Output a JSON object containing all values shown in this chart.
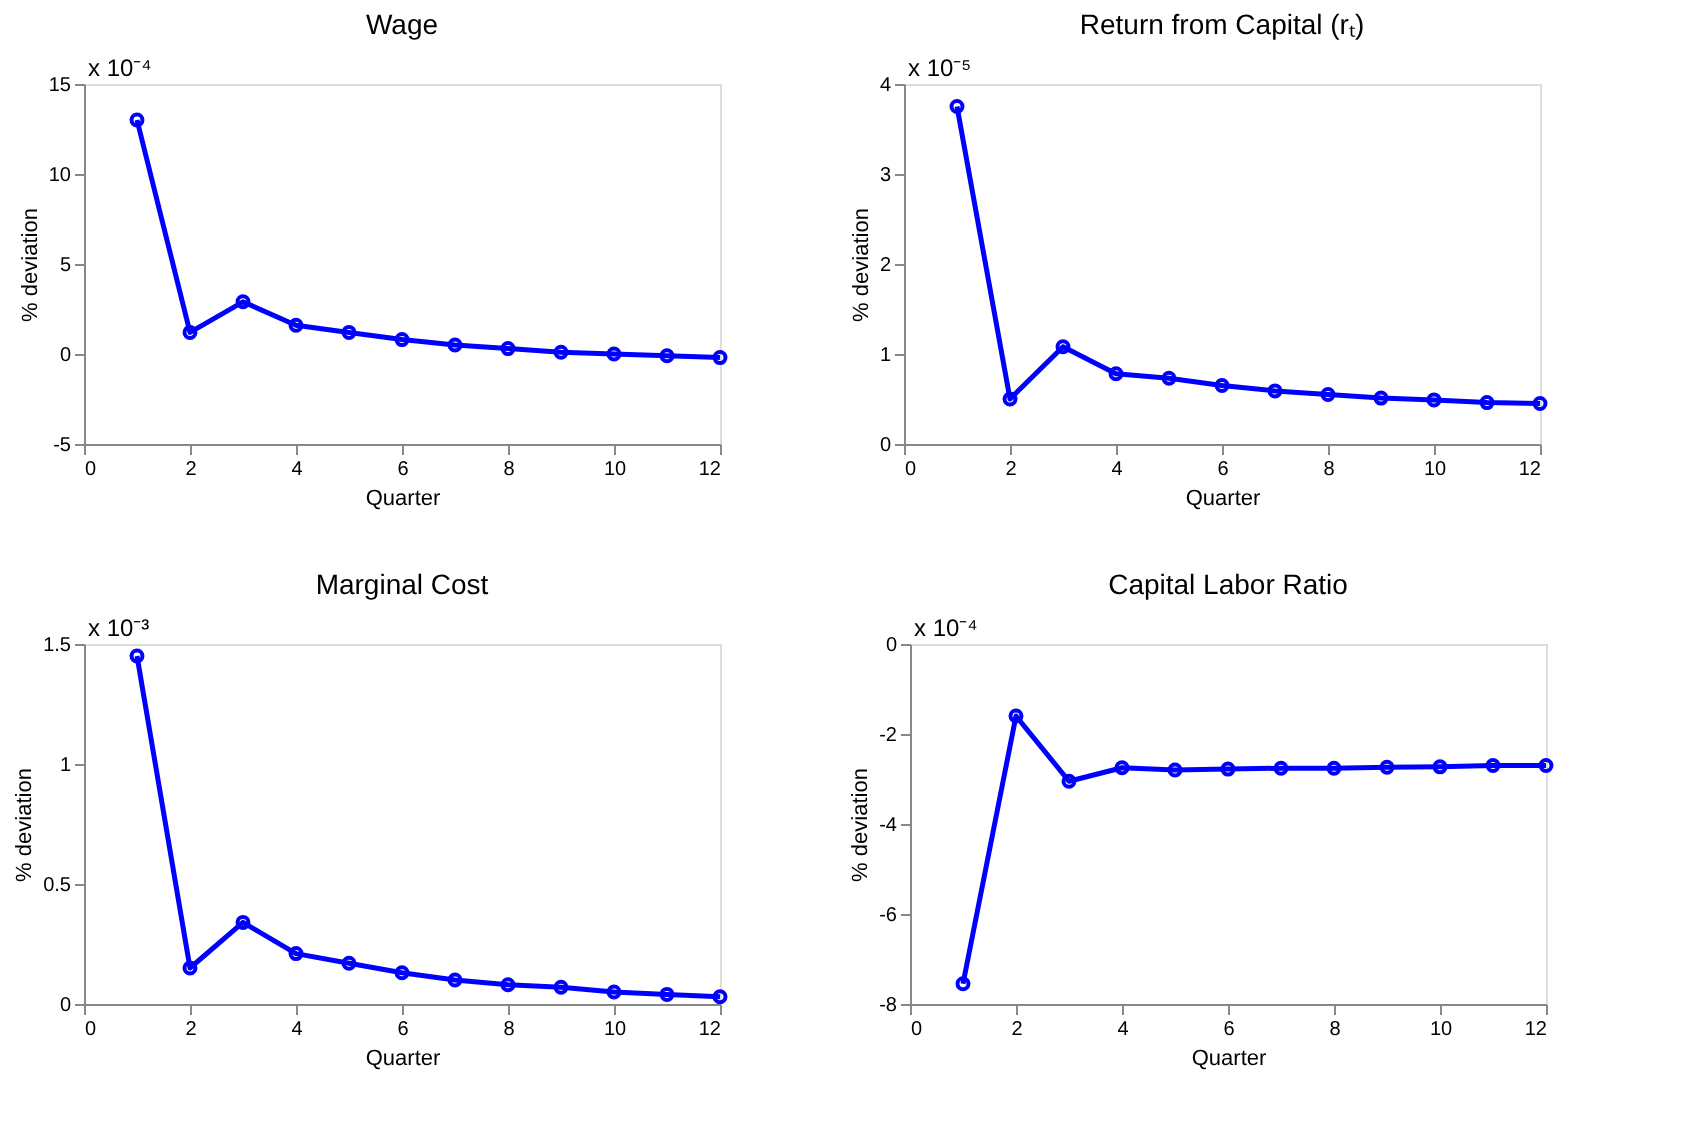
{
  "chart_data": [
    {
      "type": "line",
      "title": "Wage",
      "xlabel": "Quarter",
      "ylabel": "% deviation",
      "annotations": [
        "x 10⁻⁴"
      ],
      "x": [
        1,
        2,
        3,
        4,
        5,
        6,
        7,
        8,
        9,
        10,
        11,
        12
      ],
      "series": [
        {
          "color": "#0000ff",
          "values": [
            13,
            1.2,
            2.9,
            1.6,
            1.2,
            0.8,
            0.5,
            0.3,
            0.1,
            0,
            -0.1,
            -0.2
          ]
        }
      ],
      "xlim": [
        0,
        12
      ],
      "xticks": [
        0,
        2,
        4,
        6,
        8,
        10,
        12
      ],
      "ylim": [
        -5,
        15
      ],
      "yticks": [
        -5,
        0,
        5,
        10,
        15
      ],
      "marker": "circle",
      "line_style": "solid",
      "grid": false
    },
    {
      "type": "line",
      "title": "Return from Capital (rₜ)",
      "xlabel": "Quarter",
      "ylabel": "% deviation",
      "annotations": [
        "x 10⁻⁵"
      ],
      "x": [
        1,
        2,
        3,
        4,
        5,
        6,
        7,
        8,
        9,
        10,
        11,
        12
      ],
      "series": [
        {
          "color": "#0000ff",
          "values": [
            3.75,
            0.5,
            1.08,
            0.78,
            0.73,
            0.65,
            0.59,
            0.55,
            0.51,
            0.49,
            0.46,
            0.45
          ]
        }
      ],
      "xlim": [
        0,
        12
      ],
      "xticks": [
        0,
        2,
        4,
        6,
        8,
        10,
        12
      ],
      "ylim": [
        0,
        4
      ],
      "yticks": [
        0,
        1,
        2,
        3,
        4
      ],
      "marker": "circle",
      "line_style": "solid",
      "grid": false
    },
    {
      "type": "line",
      "title": "Marginal Cost",
      "xlabel": "Quarter",
      "ylabel": "% deviation",
      "annotations": [
        "x 10⁻³"
      ],
      "x": [
        1,
        2,
        3,
        4,
        5,
        6,
        7,
        8,
        9,
        10,
        11,
        12
      ],
      "series": [
        {
          "color": "#0000ff",
          "values": [
            1.45,
            0.15,
            0.34,
            0.21,
            0.17,
            0.13,
            0.1,
            0.08,
            0.07,
            0.05,
            0.04,
            0.03
          ]
        }
      ],
      "xlim": [
        0,
        12
      ],
      "xticks": [
        0,
        2,
        4,
        6,
        8,
        10,
        12
      ],
      "ylim": [
        0,
        1.5
      ],
      "yticks": [
        0,
        0.5,
        1,
        1.5
      ],
      "marker": "circle",
      "line_style": "solid",
      "grid": false
    },
    {
      "type": "line",
      "title": "Capital Labor Ratio",
      "xlabel": "Quarter",
      "ylabel": "% deviation",
      "annotations": [
        "x 10⁻⁴"
      ],
      "x": [
        1,
        2,
        3,
        4,
        5,
        6,
        7,
        8,
        9,
        10,
        11,
        12
      ],
      "series": [
        {
          "color": "#0000ff",
          "values": [
            -7.55,
            -1.6,
            -3.05,
            -2.75,
            -2.8,
            -2.78,
            -2.76,
            -2.76,
            -2.74,
            -2.73,
            -2.7,
            -2.7
          ]
        }
      ],
      "xlim": [
        0,
        12
      ],
      "xticks": [
        0,
        2,
        4,
        6,
        8,
        10,
        12
      ],
      "ylim": [
        -8,
        0
      ],
      "yticks": [
        -8,
        -6,
        -4,
        -2,
        0
      ],
      "marker": "circle",
      "line_style": "solid",
      "grid": false
    }
  ]
}
